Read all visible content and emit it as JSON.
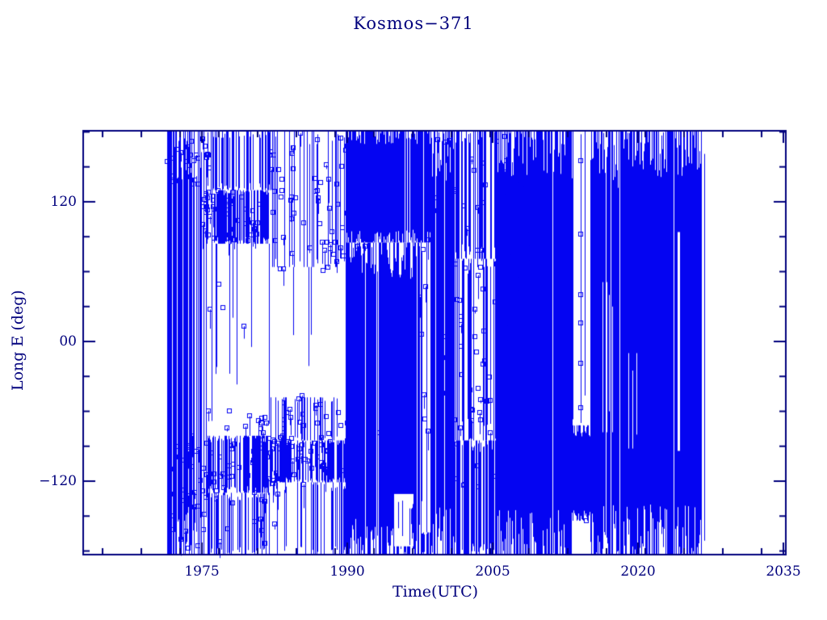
{
  "chart_data": {
    "type": "scatter",
    "title": "Kosmos−371",
    "xlabel": "Time(UTC)",
    "ylabel": "Long E (deg)",
    "background_color": "#ffffff",
    "axis_color": "#00007d",
    "data_color": "#0404f2",
    "marker": "open-square",
    "legend": "none",
    "grid": false,
    "xlim": [
      1962.75,
      2035.25
    ],
    "ylim": [
      -183.1,
      181.0
    ],
    "x_major_ticks": [
      1975,
      1990,
      2005,
      2020,
      2035
    ],
    "x_tick_labels": [
      "1975",
      "1990",
      "2005",
      "2020",
      "2035"
    ],
    "x_minor_tick_start": 1964.75,
    "x_minor_tick_step": 4,
    "y_major_ticks": [
      120,
      0,
      -120
    ],
    "y_tick_labels": [
      "120",
      "00",
      "−120"
    ],
    "y_minor_tick_step": 30,
    "data_time_extent": [
      1971.4,
      2026.8
    ],
    "description": "Sub-satellite longitude of Kosmos-371 vs time; dense vertical traces from ±180° longitude wrap-around",
    "coverage_regions": [
      {
        "t0": 1971.4,
        "t1": 1974.2,
        "bands": [
          {
            "l0": -183,
            "l1": 181,
            "d": 0.78
          }
        ]
      },
      {
        "t0": 1974.2,
        "t1": 1975.5,
        "bands": [
          {
            "l0": -183,
            "l1": 181,
            "d": 0.45
          }
        ]
      },
      {
        "t0": 1975.5,
        "t1": 1982.0,
        "bands": [
          {
            "l0": 130,
            "l1": 181,
            "d": 0.5
          },
          {
            "l0": 84,
            "l1": 130,
            "d": 0.65
          },
          {
            "l0": -81,
            "l1": 84,
            "d": 0.06
          },
          {
            "l0": -130,
            "l1": -81,
            "d": 0.7
          },
          {
            "l0": -183,
            "l1": -130,
            "d": 0.5
          }
        ]
      },
      {
        "t0": 1982.0,
        "t1": 1989.8,
        "bands": [
          {
            "l0": 64,
            "l1": 181,
            "d": 0.32
          },
          {
            "l0": -48,
            "l1": 64,
            "d": 0.045
          },
          {
            "l0": -85,
            "l1": -48,
            "d": 0.25
          },
          {
            "l0": -121,
            "l1": -85,
            "d": 0.65
          },
          {
            "l0": -183,
            "l1": -121,
            "d": 0.38
          }
        ]
      },
      {
        "t0": 1989.8,
        "t1": 1997.6,
        "bands": [
          {
            "l0": 85,
            "l1": 181,
            "d": 0.97
          },
          {
            "l0": -183,
            "l1": 85,
            "d": 0.9
          }
        ]
      },
      {
        "t0": 1997.6,
        "t1": 1998.6,
        "bands": [
          {
            "l0": 85,
            "l1": 181,
            "d": 0.85
          },
          {
            "l0": -164,
            "l1": 85,
            "d": 0.12
          },
          {
            "l0": -183,
            "l1": -164,
            "d": 0.7
          }
        ]
      },
      {
        "t0": 1998.6,
        "t1": 2001.0,
        "bands": [
          {
            "l0": -183,
            "l1": 181,
            "d": 0.92
          }
        ]
      },
      {
        "t0": 2001.0,
        "t1": 2005.3,
        "bands": [
          {
            "l0": 71,
            "l1": 181,
            "d": 0.5
          },
          {
            "l0": -85,
            "l1": 71,
            "d": 0.42
          },
          {
            "l0": -183,
            "l1": -85,
            "d": 0.72
          }
        ]
      },
      {
        "t0": 2005.3,
        "t1": 2013.2,
        "bands": [
          {
            "l0": -183,
            "l1": 181,
            "d": 0.97
          }
        ]
      },
      {
        "t0": 2013.2,
        "t1": 2015.1,
        "bands": [
          {
            "l0": -72,
            "l1": 181,
            "d": 0.035
          },
          {
            "l0": -154,
            "l1": -72,
            "d": 0.95
          },
          {
            "l0": -183,
            "l1": -154,
            "d": 0.06
          }
        ]
      },
      {
        "t0": 2015.1,
        "t1": 2026.5,
        "bands": [
          {
            "l0": -183,
            "l1": 181,
            "d": 0.965
          }
        ]
      },
      {
        "t0": 2026.5,
        "t1": 2026.8,
        "bands": [
          {
            "l0": -183,
            "l1": 181,
            "d": 0.35
          }
        ]
      }
    ],
    "white_gaps": [
      {
        "t0": 2016.3,
        "t1": 2016.42,
        "l0": -78,
        "l1": 51,
        "strands": 0
      },
      {
        "t0": 2016.68,
        "t1": 2016.8,
        "l0": -78,
        "l1": 51,
        "strands": 0
      },
      {
        "t0": 2017.0,
        "t1": 2017.1,
        "l0": -60,
        "l1": 40,
        "strands": 0
      },
      {
        "t0": 2017.3,
        "t1": 2017.42,
        "l0": -78,
        "l1": 30,
        "strands": 0
      },
      {
        "t0": 2019.0,
        "t1": 2019.12,
        "l0": -92,
        "l1": -10,
        "strands": 0
      },
      {
        "t0": 2019.4,
        "t1": 2019.52,
        "l0": -92,
        "l1": -25,
        "strands": 0
      },
      {
        "t0": 2019.8,
        "t1": 2019.92,
        "l0": -80,
        "l1": -10,
        "strands": 0
      },
      {
        "t0": 2017.9,
        "t1": 2018.0,
        "l0": 132,
        "l1": 181,
        "strands": 0
      },
      {
        "t0": 2024.1,
        "t1": 2024.35,
        "l0": -94,
        "l1": 94,
        "strands": 0
      },
      {
        "t0": 1994.8,
        "t1": 1996.8,
        "l0": -176,
        "l1": -131,
        "strands": 6
      }
    ],
    "strand_lines": [
      {
        "t": 2014.08,
        "l0": -70,
        "l1": 178,
        "marker_lons": [
          155,
          92,
          40,
          16,
          -19,
          -57
        ]
      }
    ],
    "marker_clusters": [
      {
        "t0": 1975.0,
        "t1": 1982.5,
        "l0": 84,
        "l1": 134,
        "n": 55
      },
      {
        "t0": 1971.4,
        "t1": 1976.0,
        "l0": 132,
        "l1": 177,
        "n": 26
      },
      {
        "t0": 1982.0,
        "t1": 1990.0,
        "l0": 61,
        "l1": 179,
        "n": 58
      },
      {
        "t0": 1979.2,
        "t1": 1990.2,
        "l0": -95,
        "l1": -45,
        "n": 38
      },
      {
        "t0": 1971.4,
        "t1": 1990.4,
        "l0": -123,
        "l1": -80,
        "n": 85
      },
      {
        "t0": 1971.4,
        "t1": 1982.9,
        "l0": -178,
        "l1": -123,
        "n": 32
      },
      {
        "t0": 1990.5,
        "t1": 2005.2,
        "l0": -85,
        "l1": 85,
        "n": 28
      },
      {
        "t0": 1997.5,
        "t1": 2008.8,
        "l0": 2,
        "l1": 179,
        "n": 50
      },
      {
        "t0": 2000.7,
        "t1": 2005.5,
        "l0": -150,
        "l1": 2,
        "n": 24
      },
      {
        "t0": 1975.5,
        "t1": 1982.0,
        "l0": -150,
        "l1": 78,
        "n": 12
      },
      {
        "t0": 2014.6,
        "t1": 2015.2,
        "l0": -162,
        "l1": -152,
        "n": 1
      }
    ]
  }
}
